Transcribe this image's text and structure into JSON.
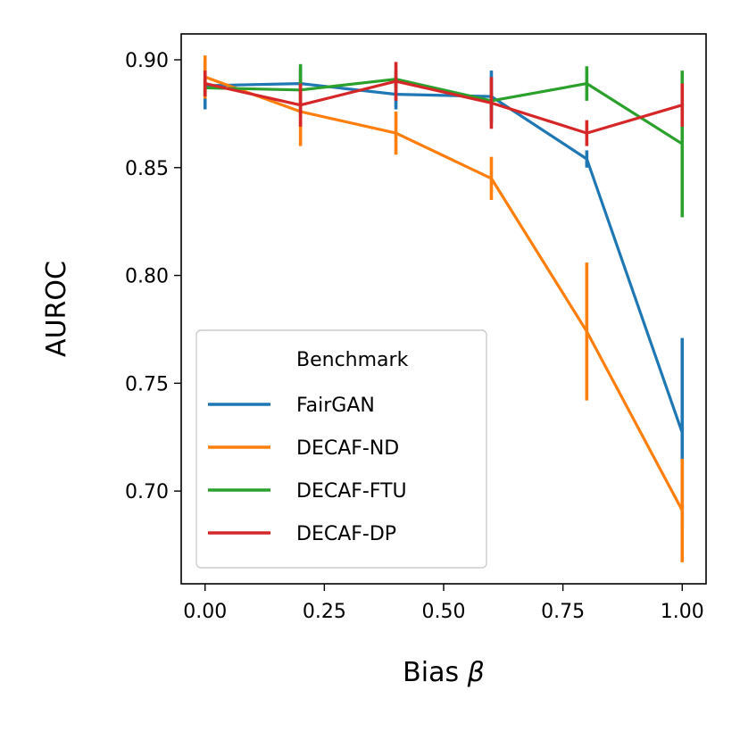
{
  "chart_data": {
    "type": "line",
    "xlabel": "Bias",
    "xlabel_symbol": "β",
    "ylabel": "AUROC",
    "xlim": [
      -0.05,
      1.05
    ],
    "ylim": [
      0.657,
      0.912
    ],
    "xticks": [
      0.0,
      0.25,
      0.5,
      0.75,
      1.0
    ],
    "xtick_labels": [
      "0.00",
      "0.25",
      "0.50",
      "0.75",
      "1.00"
    ],
    "yticks": [
      0.7,
      0.75,
      0.8,
      0.85,
      0.9
    ],
    "ytick_labels": [
      "0.70",
      "0.75",
      "0.80",
      "0.85",
      "0.90"
    ],
    "x": [
      0.0,
      0.2,
      0.4,
      0.6,
      0.8,
      1.0
    ],
    "legend": {
      "title": "Benchmark",
      "position": "lower-left"
    },
    "grid": false,
    "series": [
      {
        "name": "FairGAN",
        "color": "#1f77b4",
        "values": [
          0.888,
          0.889,
          0.884,
          0.883,
          0.854,
          0.727
        ],
        "err": [
          0.011,
          0.007,
          0.007,
          0.012,
          0.004,
          0.044
        ]
      },
      {
        "name": "DECAF-ND",
        "color": "#ff7f0e",
        "values": [
          0.892,
          0.876,
          0.866,
          0.845,
          0.774,
          0.691
        ],
        "err": [
          0.01,
          0.016,
          0.01,
          0.01,
          0.032,
          0.024
        ]
      },
      {
        "name": "DECAF-FTU",
        "color": "#2ca02c",
        "values": [
          0.887,
          0.886,
          0.891,
          0.881,
          0.889,
          0.861
        ],
        "err": [
          0.004,
          0.012,
          0.004,
          0.004,
          0.008,
          0.034
        ]
      },
      {
        "name": "DECAF-DP",
        "color": "#d62728",
        "values": [
          0.889,
          0.879,
          0.89,
          0.88,
          0.866,
          0.879
        ],
        "err": [
          0.006,
          0.01,
          0.009,
          0.012,
          0.006,
          0.01
        ]
      }
    ]
  }
}
